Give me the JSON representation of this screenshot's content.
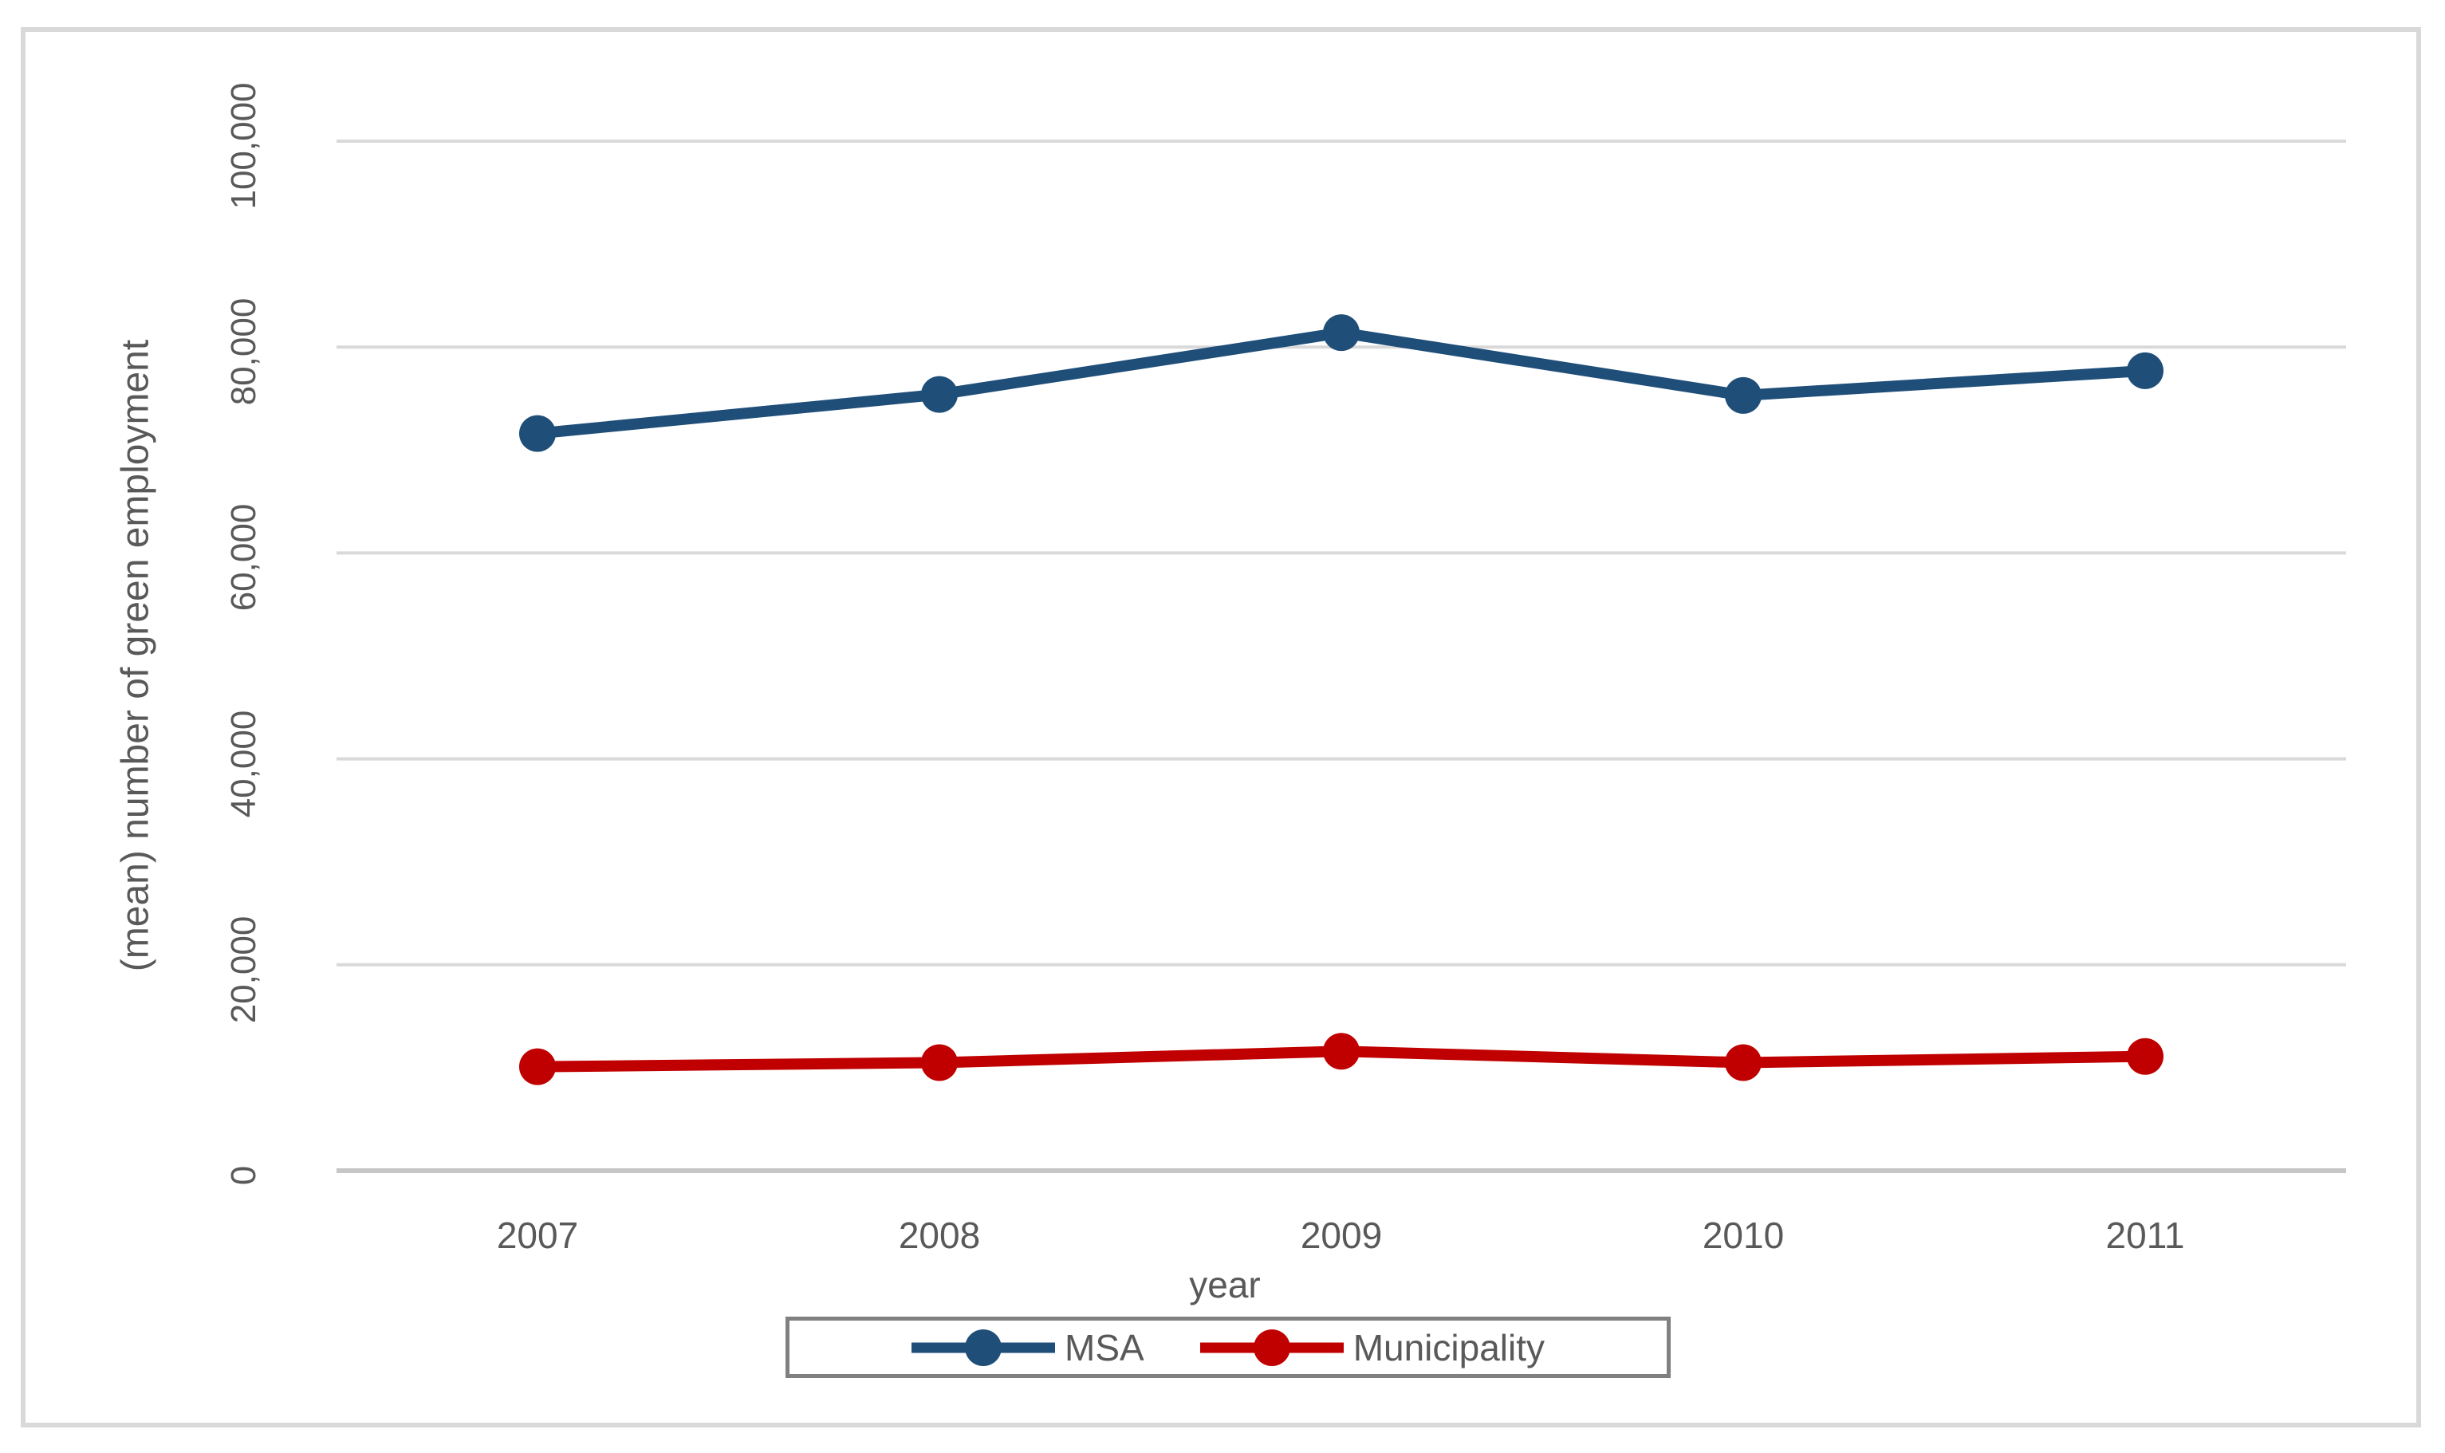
{
  "chart_data": {
    "type": "line",
    "title": "",
    "xlabel": "year",
    "ylabel": "(mean) number of green employment",
    "categories": [
      "2007",
      "2008",
      "2009",
      "2010",
      "2011"
    ],
    "series": [
      {
        "name": "MSA",
        "color": "#1f4e79",
        "values": [
          71600,
          75400,
          81400,
          75300,
          77700
        ]
      },
      {
        "name": "Municipality",
        "color": "#c00000",
        "values": [
          10100,
          10500,
          11600,
          10500,
          11100
        ]
      }
    ],
    "ylim": [
      0,
      100000
    ],
    "ytick_values": [
      0,
      20000,
      40000,
      60000,
      80000,
      100000
    ],
    "ytick_labels": [
      "0",
      "20,000",
      "40,000",
      "60,000",
      "80,000",
      "100,000"
    ],
    "grid": "horizontal-only",
    "legend_position": "bottom-center"
  },
  "colors": {
    "gridline": "#d9d9d9",
    "axis_line": "#c6c6c6",
    "text": "#595959",
    "legend_border": "#808080",
    "frame_border": "#d9d9d9"
  }
}
